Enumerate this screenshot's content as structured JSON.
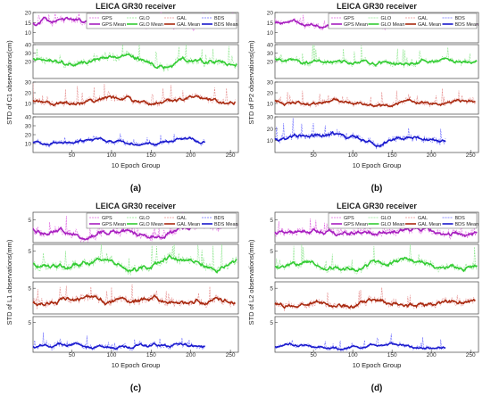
{
  "legend_labels": {
    "gps": "GPS",
    "glo": "GLO",
    "gal": "GAL",
    "bds": "BDS",
    "gps_mean": "GPS Mean",
    "glo_mean": "GLO Mean",
    "gal_mean": "GAL Mean",
    "bds_mean": "BDS Mean"
  },
  "colors": {
    "gps_raw": "#e066e0",
    "gps_mean": "#a61fbf",
    "glo_raw": "#8ee68e",
    "glo_mean": "#33cc33",
    "gal_raw": "#e69090",
    "gal_mean": "#a82a10",
    "bds_raw": "#6a6aff",
    "bds_mean": "#1a1acc"
  },
  "chart_data": [
    {
      "type": "line",
      "panel_label": "(a)",
      "title": "LEICA GR30 receiver",
      "ylabel": "STD of C1 observations(cm)",
      "xlabel": "10 Epoch Group",
      "xlim": [
        1,
        260
      ],
      "xticks": [
        "50",
        "100",
        "150",
        "200",
        "250"
      ],
      "subplots": [
        {
          "system": "GPS",
          "ylim": [
            5,
            20
          ],
          "yticks": [
            "10",
            "15",
            "20"
          ],
          "mean_level": 15,
          "raw_spread": 4,
          "x_end": 258
        },
        {
          "system": "GLO",
          "ylim": [
            0,
            40
          ],
          "yticks": [
            "20",
            "30",
            "40"
          ],
          "mean_level": 22,
          "raw_spread": 10,
          "x_end": 258
        },
        {
          "system": "GAL",
          "ylim": [
            0,
            30
          ],
          "yticks": [
            "10",
            "20",
            "30"
          ],
          "mean_level": 12,
          "raw_spread": 7,
          "x_end": 256
        },
        {
          "system": "BDS",
          "ylim": [
            0,
            40
          ],
          "yticks": [
            "10",
            "20",
            "30",
            "40"
          ],
          "mean_level": 12,
          "raw_spread": 6,
          "x_end": 218
        }
      ]
    },
    {
      "type": "line",
      "panel_label": "(b)",
      "title": "LEICA GR30 receiver",
      "ylabel": "STD of P2 observations(cm)",
      "xlabel": "10 Epoch Group",
      "xlim": [
        1,
        260
      ],
      "xticks": [
        "50",
        "100",
        "150",
        "200",
        "250"
      ],
      "subplots": [
        {
          "system": "GPS",
          "ylim": [
            5,
            20
          ],
          "yticks": [
            "10",
            "15",
            "20"
          ],
          "mean_level": 14,
          "raw_spread": 3,
          "x_end": 258
        },
        {
          "system": "GLO",
          "ylim": [
            0,
            40
          ],
          "yticks": [
            "20",
            "30",
            "40"
          ],
          "mean_level": 20,
          "raw_spread": 8,
          "x_end": 258
        },
        {
          "system": "GAL",
          "ylim": [
            0,
            30
          ],
          "yticks": [
            "10",
            "20",
            "30"
          ],
          "mean_level": 11,
          "raw_spread": 6,
          "x_end": 256
        },
        {
          "system": "BDS",
          "ylim": [
            0,
            30
          ],
          "yticks": [
            "10",
            "20",
            "30"
          ],
          "mean_level": 12,
          "raw_spread": 6,
          "x_end": 218
        }
      ]
    },
    {
      "type": "line",
      "panel_label": "(c)",
      "title": "LEICA GR30 receiver",
      "ylabel": "STD of L1 observations(mm)",
      "xlabel": "10 Epoch Group",
      "xlim": [
        1,
        260
      ],
      "xticks": [
        "50",
        "100",
        "150",
        "200",
        "250"
      ],
      "subplots": [
        {
          "system": "GPS",
          "ylim": [
            2,
            6
          ],
          "yticks": [
            "5"
          ],
          "mean_level": 3.6,
          "raw_spread": 1.2,
          "x_end": 258
        },
        {
          "system": "GLO",
          "ylim": [
            1,
            6
          ],
          "yticks": [
            "5"
          ],
          "mean_level": 3.2,
          "raw_spread": 1.4,
          "x_end": 258
        },
        {
          "system": "GAL",
          "ylim": [
            1,
            6
          ],
          "yticks": [
            "5"
          ],
          "mean_level": 3.0,
          "raw_spread": 1.4,
          "x_end": 256
        },
        {
          "system": "BDS",
          "ylim": [
            0,
            6
          ],
          "yticks": [
            "5"
          ],
          "mean_level": 1.2,
          "raw_spread": 1.0,
          "x_end": 218
        }
      ]
    },
    {
      "type": "line",
      "panel_label": "(d)",
      "title": "LEICA GR30 receiver",
      "ylabel": "STD of L2 observations(mm)",
      "xlabel": "10 Epoch Group",
      "xlim": [
        1,
        260
      ],
      "xticks": [
        "50",
        "100",
        "150",
        "200",
        "250"
      ],
      "subplots": [
        {
          "system": "GPS",
          "ylim": [
            2,
            6
          ],
          "yticks": [
            "5"
          ],
          "mean_level": 3.4,
          "raw_spread": 1.1,
          "x_end": 258
        },
        {
          "system": "GLO",
          "ylim": [
            1,
            6
          ],
          "yticks": [
            "5"
          ],
          "mean_level": 3.0,
          "raw_spread": 1.2,
          "x_end": 258
        },
        {
          "system": "GAL",
          "ylim": [
            1,
            6
          ],
          "yticks": [
            "5"
          ],
          "mean_level": 2.8,
          "raw_spread": 1.3,
          "x_end": 256
        },
        {
          "system": "BDS",
          "ylim": [
            0,
            6
          ],
          "yticks": [
            "5"
          ],
          "mean_level": 1.0,
          "raw_spread": 0.8,
          "x_end": 218
        }
      ]
    }
  ]
}
